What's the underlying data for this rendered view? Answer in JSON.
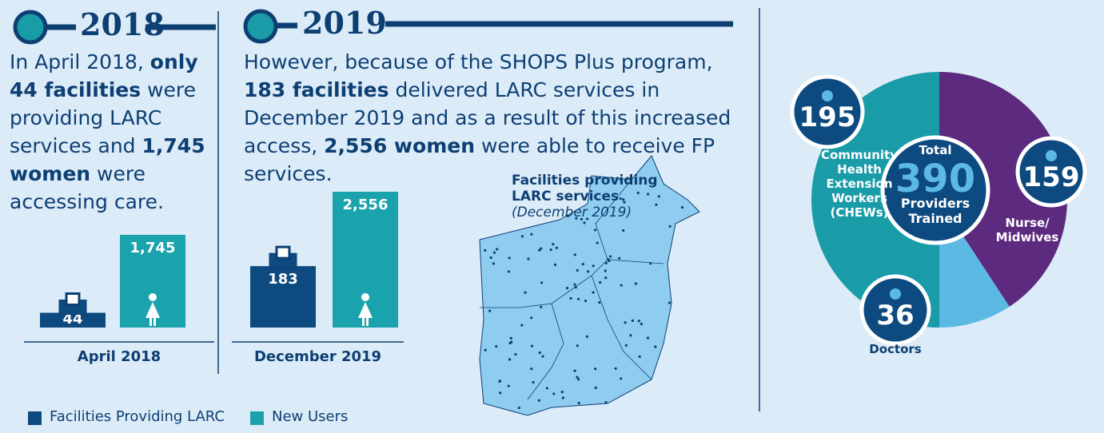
{
  "timeline": {
    "year_1": "2018",
    "year_2": "2019"
  },
  "text_2018": [
    {
      "text": "In April 2018,",
      "bold": false
    },
    {
      "text": "only 44 facilities",
      "bold": true
    },
    {
      "text": "were providing LARC services and",
      "bold": false
    },
    {
      "text": "1,745 women",
      "bold": true
    },
    {
      "text": "were accessing care.",
      "bold": false
    }
  ],
  "text_2019": [
    {
      "text": "However, because of the SHOPS Plus program,",
      "bold": false
    },
    {
      "text": "183 facilities",
      "bold": true
    },
    {
      "text": "delivered LARC services in December 2019 and as a result of this increased access,",
      "bold": false
    },
    {
      "text": "2,556 women",
      "bold": true
    },
    {
      "text": "were able to receive FP services.",
      "bold": false
    }
  ],
  "map": {
    "title": "Facilities providing LARC services",
    "subtitle": "(December 2019)"
  },
  "chart_data": [
    {
      "type": "bar",
      "categories": [
        "April 2018",
        "December 2019"
      ],
      "series": [
        {
          "name": "Facilities Providing LARC",
          "color": "#0d4a80",
          "values": [
            44,
            183
          ]
        },
        {
          "name": "New Users",
          "color": "#1aa3ad",
          "values": [
            1745,
            2556
          ],
          "value_labels": [
            "1,745",
            "2,556"
          ]
        }
      ]
    },
    {
      "type": "pie",
      "categories": [
        "Nurse/ Midwives",
        "Doctors",
        "Community Health Extension Workers (CHEWs)"
      ],
      "values": [
        159,
        36,
        195
      ],
      "colors": [
        "#5c2a7e",
        "#5bb9e3",
        "#1a9ba8"
      ],
      "total_label": "Total",
      "total": 390,
      "total_caption": "Providers Trained"
    }
  ]
}
